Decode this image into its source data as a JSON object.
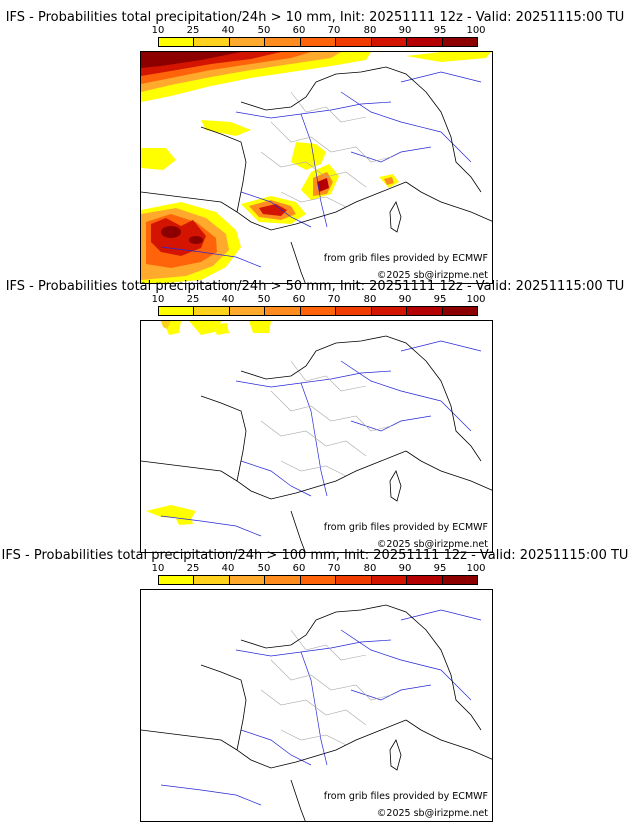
{
  "colorbar": {
    "labels": [
      "10",
      "25",
      "40",
      "50",
      "60",
      "70",
      "80",
      "90",
      "95",
      "100"
    ],
    "colors": [
      "#ffff00",
      "#ffd21e",
      "#ffaa2d",
      "#ff8c1e",
      "#ff640a",
      "#f03c00",
      "#d21400",
      "#b40000",
      "#8c0000",
      "#5a0000"
    ]
  },
  "panels": [
    {
      "title": "IFS - Probabilities total precipitation/24h > 10 mm, Init: 20251111 12z - Valid: 20251115:00 TU",
      "source": "from grib files provided by ECMWF",
      "copyright": "©2025 sb@irizpme.net"
    },
    {
      "title": "IFS - Probabilities total precipitation/24h > 50 mm, Init: 20251111 12z - Valid: 20251115:00 TU",
      "source": "from grib files provided by ECMWF",
      "copyright": "©2025 sb@irizpme.net"
    },
    {
      "title": "IFS - Probabilities total precipitation/24h > 100 mm, Init: 20251111 12z - Valid: 20251115:00 TU",
      "source": "from grib files provided by ECMWF",
      "copyright": "©2025 sb@irizpme.net"
    }
  ]
}
